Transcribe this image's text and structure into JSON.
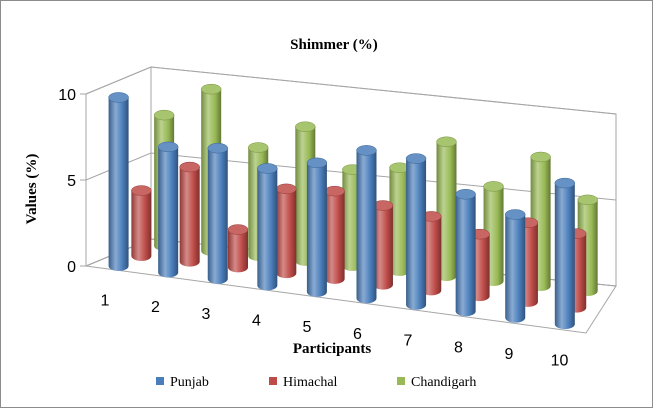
{
  "chart_data": {
    "type": "bar",
    "style": "3d-cylinder",
    "title": "Shimmer (%)",
    "xlabel": "Participants",
    "ylabel": "Values (%)",
    "ylim": [
      0,
      10
    ],
    "yticks": [
      "0",
      "5",
      "10"
    ],
    "categories": [
      "1",
      "2",
      "3",
      "4",
      "5",
      "6",
      "7",
      "8",
      "9",
      "10"
    ],
    "series": [
      {
        "name": "Punjab",
        "color": "#4a7ebb",
        "values": [
          9.8,
          7.3,
          7.6,
          6.8,
          7.5,
          8.6,
          8.5,
          6.8,
          6.0,
          8.2
        ]
      },
      {
        "name": "Himachal",
        "color": "#be4b48",
        "values": [
          3.8,
          5.5,
          2.2,
          4.9,
          5.1,
          4.6,
          4.3,
          3.6,
          4.6,
          4.3
        ]
      },
      {
        "name": "Chandigarh",
        "color": "#98b954",
        "values": [
          7.6,
          9.4,
          6.3,
          7.8,
          5.6,
          6.0,
          7.8,
          5.5,
          7.5,
          5.3
        ]
      }
    ],
    "legend": "bottom",
    "grid": true
  }
}
